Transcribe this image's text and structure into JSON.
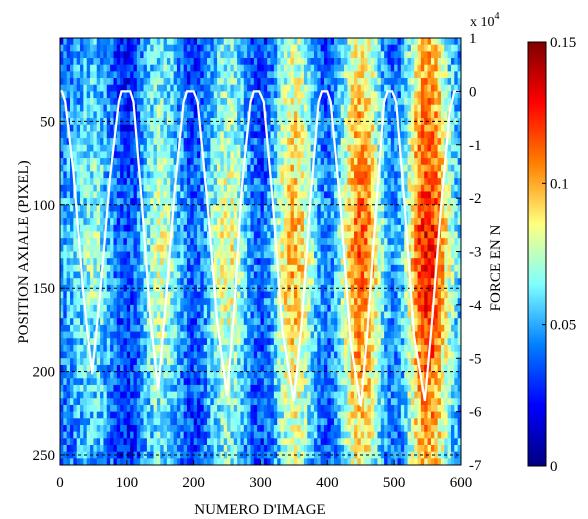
{
  "chart_data": {
    "type": "heatmap",
    "xlabel": "NUMERO D'IMAGE",
    "ylabel": "POSITION AXIALE (PIXEL)",
    "y2label": "FORCE EN N",
    "y2_exponent_label": "x 10",
    "y2_exponent": "4",
    "xlim": [
      0,
      600
    ],
    "ylim": [
      0,
      256
    ],
    "y2lim": [
      -70000,
      10000
    ],
    "x_ticks": [
      "0",
      "100",
      "200",
      "300",
      "400",
      "500",
      "600"
    ],
    "x_tick_values": [
      0,
      100,
      200,
      300,
      400,
      500,
      600
    ],
    "y_ticks": [
      "50",
      "100",
      "150",
      "200",
      "250"
    ],
    "y_tick_values": [
      50,
      100,
      150,
      200,
      250
    ],
    "y2_ticks": [
      "1",
      "0",
      "-1",
      "-2",
      "-3",
      "-4",
      "-5",
      "-6",
      "-7"
    ],
    "y2_tick_values": [
      1,
      0,
      -1,
      -2,
      -3,
      -4,
      -5,
      -6,
      -7
    ],
    "grid_lines_y": [
      50,
      100,
      150,
      200,
      250
    ],
    "colorbar": {
      "ticks": [
        "0.15",
        "0.1",
        "0.05",
        "0"
      ],
      "tick_values": [
        0.15,
        0.1,
        0.05,
        0
      ],
      "range": [
        0,
        0.15
      ],
      "colormap": [
        "#00007f",
        "#0000ff",
        "#007fff",
        "#7fffff",
        "#ffff7f",
        "#ff7f00",
        "#ff0000",
        "#7f0000"
      ]
    },
    "heat_bands": [
      {
        "x": 0,
        "intensity": 0.05
      },
      {
        "x": 50,
        "intensity": 0.07
      },
      {
        "x": 100,
        "intensity": 0.035
      },
      {
        "x": 150,
        "intensity": 0.08
      },
      {
        "x": 200,
        "intensity": 0.04
      },
      {
        "x": 250,
        "intensity": 0.085
      },
      {
        "x": 300,
        "intensity": 0.04
      },
      {
        "x": 350,
        "intensity": 0.1
      },
      {
        "x": 400,
        "intensity": 0.045
      },
      {
        "x": 450,
        "intensity": 0.115
      },
      {
        "x": 500,
        "intensity": 0.05
      },
      {
        "x": 550,
        "intensity": 0.13
      },
      {
        "x": 600,
        "intensity": 0.06
      }
    ],
    "force_curve": {
      "name": "FORCE EN N",
      "color": "#ffffff",
      "points": [
        [
          0,
          0
        ],
        [
          3,
          0
        ],
        [
          8,
          -2000
        ],
        [
          20,
          -15000
        ],
        [
          35,
          -38000
        ],
        [
          48,
          -53000
        ],
        [
          60,
          -38000
        ],
        [
          75,
          -16000
        ],
        [
          88,
          -2000
        ],
        [
          92,
          0
        ],
        [
          105,
          0
        ],
        [
          110,
          -2000
        ],
        [
          122,
          -20000
        ],
        [
          135,
          -42000
        ],
        [
          147,
          -56000
        ],
        [
          158,
          -40000
        ],
        [
          172,
          -18000
        ],
        [
          185,
          -2000
        ],
        [
          190,
          0
        ],
        [
          200,
          0
        ],
        [
          206,
          -2000
        ],
        [
          220,
          -20000
        ],
        [
          235,
          -43000
        ],
        [
          250,
          -57000
        ],
        [
          260,
          -42000
        ],
        [
          272,
          -18000
        ],
        [
          285,
          -2000
        ],
        [
          290,
          0
        ],
        [
          298,
          0
        ],
        [
          305,
          -2000
        ],
        [
          318,
          -20000
        ],
        [
          333,
          -45000
        ],
        [
          350,
          -58000
        ],
        [
          362,
          -43000
        ],
        [
          375,
          -20000
        ],
        [
          387,
          -2000
        ],
        [
          392,
          0
        ],
        [
          400,
          0
        ],
        [
          405,
          -2000
        ],
        [
          420,
          -22000
        ],
        [
          435,
          -47000
        ],
        [
          450,
          -59000
        ],
        [
          460,
          -45000
        ],
        [
          473,
          -22000
        ],
        [
          485,
          -2000
        ],
        [
          490,
          0
        ],
        [
          497,
          0
        ],
        [
          503,
          -2000
        ],
        [
          516,
          -22000
        ],
        [
          530,
          -46000
        ],
        [
          546,
          -58000
        ],
        [
          556,
          -44000
        ],
        [
          570,
          -22000
        ],
        [
          583,
          -4000
        ],
        [
          590,
          0
        ],
        [
          597,
          0
        ]
      ]
    }
  }
}
